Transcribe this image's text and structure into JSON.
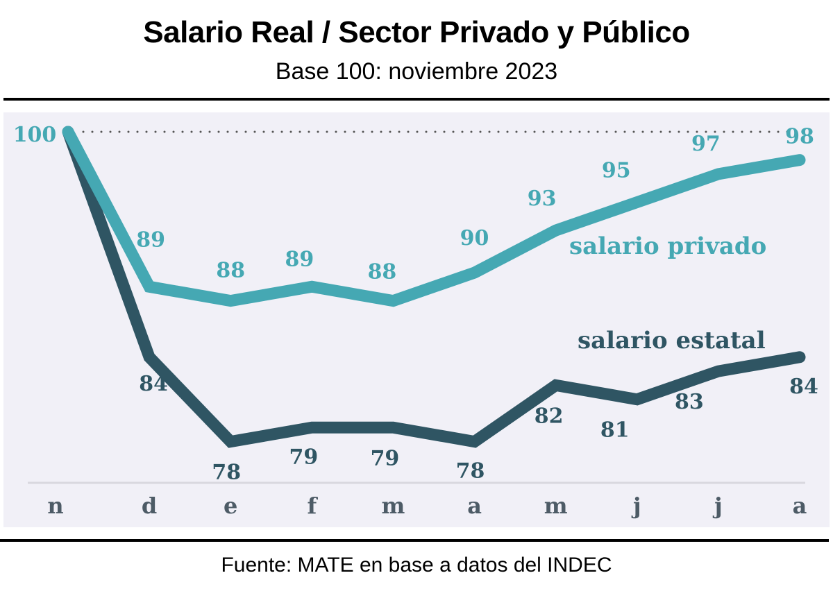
{
  "header": {
    "title": "Salario Real / Sector Privado y Público",
    "subtitle": "Base 100: noviembre 2023"
  },
  "footer": {
    "source": "Fuente: MATE en base a datos del INDEC"
  },
  "colors": {
    "privado": "#45a8b3",
    "estatal": "#2f5563",
    "panel_bg": "#f1f0f7",
    "reference_line": "#555555",
    "tick_label": "#4d5b66"
  },
  "chart_data": {
    "type": "line",
    "title": "Salario Real / Sector Privado y Público",
    "subtitle": "Base 100: noviembre 2023",
    "xlabel": "",
    "ylabel": "",
    "categories": [
      "n",
      "d",
      "e",
      "f",
      "m",
      "a",
      "m",
      "j",
      "j",
      "a"
    ],
    "series": [
      {
        "name": "salario privado",
        "values": [
          100,
          89,
          88,
          89,
          88,
          90,
          93,
          95,
          97,
          98
        ]
      },
      {
        "name": "salario estatal",
        "values": [
          100,
          84,
          78,
          79,
          79,
          78,
          82,
          81,
          83,
          84
        ]
      }
    ],
    "reference_line": {
      "value": 100,
      "style": "dotted"
    },
    "y_axis_visible": false,
    "grid": false,
    "legend": "inline labels",
    "source": "Fuente: MATE en base a datos del INDEC"
  }
}
